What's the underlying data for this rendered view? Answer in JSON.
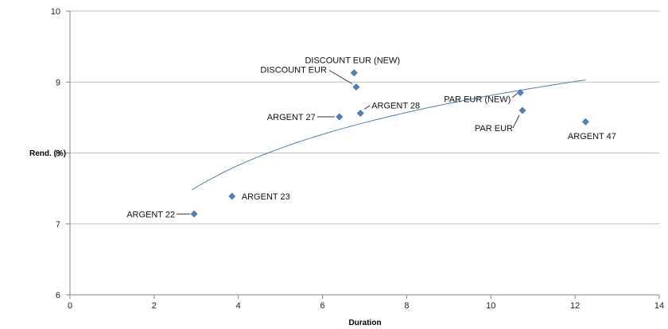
{
  "chart_data": {
    "type": "scatter",
    "title": "",
    "xlabel": "Duration",
    "ylabel": "Rend. (%)",
    "xlim": [
      0,
      14
    ],
    "ylim": [
      6,
      10
    ],
    "x_ticks": [
      "0",
      "2",
      "4",
      "6",
      "8",
      "10",
      "12",
      "14"
    ],
    "y_ticks": [
      "6",
      "7",
      "8",
      "9",
      "10"
    ],
    "grid": "horizontal",
    "marker_color": "#4f81bd",
    "trend_color": "#4a7ebb",
    "points": [
      {
        "label": "ARGENT 22",
        "x": 2.95,
        "y": 7.14
      },
      {
        "label": "ARGENT 23",
        "x": 3.85,
        "y": 7.39
      },
      {
        "label": "ARGENT 27",
        "x": 6.4,
        "y": 8.51
      },
      {
        "label": "ARGENT 28",
        "x": 6.9,
        "y": 8.56
      },
      {
        "label": "DISCOUNT EUR",
        "x": 6.8,
        "y": 8.93
      },
      {
        "label": "DISCOUNT EUR (NEW)",
        "x": 6.75,
        "y": 9.13
      },
      {
        "label": "PAR EUR (NEW)",
        "x": 10.7,
        "y": 8.85
      },
      {
        "label": "PAR EUR",
        "x": 10.75,
        "y": 8.6
      },
      {
        "label": "ARGENT 47",
        "x": 12.25,
        "y": 8.44
      }
    ],
    "trendline": {
      "type": "logarithmic",
      "x_range": [
        2.9,
        12.25
      ],
      "y_at_start": 7.48,
      "y_at_end": 9.03
    }
  }
}
